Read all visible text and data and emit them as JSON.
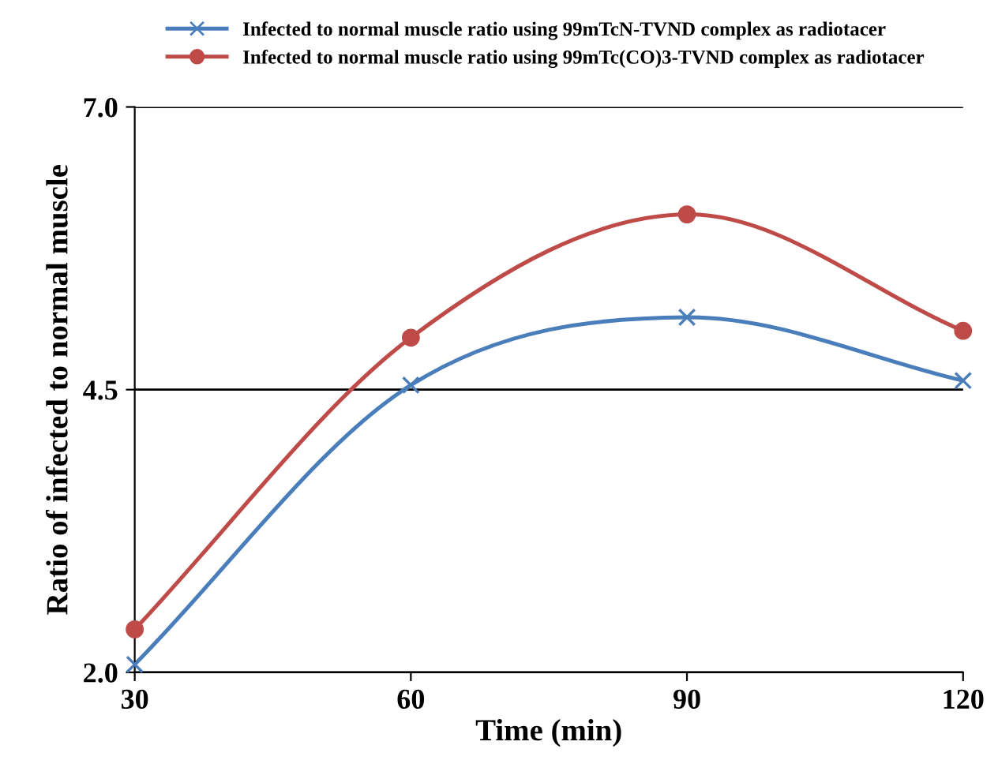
{
  "chart_data": {
    "type": "line",
    "xlabel": "Time (min)",
    "ylabel": "Ratio of infected to normal muscle",
    "x": [
      30,
      60,
      90,
      120
    ],
    "series": [
      {
        "name": "Infected to normal muscle ratio using 99mTcN-TVND complex as radiotacer",
        "color": "#4a7ebb",
        "marker": "cross",
        "values": [
          2.07,
          4.54,
          5.14,
          4.58
        ]
      },
      {
        "name": "Infected to normal muscle ratio using 99mTc(CO)3-TVND complex as radiotacer",
        "color": "#be4b48",
        "marker": "circle",
        "values": [
          2.38,
          4.96,
          6.05,
          5.02
        ]
      }
    ],
    "xlim": [
      30,
      120
    ],
    "xticks": [
      30,
      60,
      90,
      120
    ],
    "ylim": [
      2.0,
      7.0
    ],
    "yticks": [
      {
        "value": 2.0,
        "label": "2.0"
      },
      {
        "value": 4.5,
        "label": "4.5"
      },
      {
        "value": 7.0,
        "label": "7.0"
      }
    ],
    "grid": "y",
    "legend": "top",
    "line_style": "solid"
  }
}
